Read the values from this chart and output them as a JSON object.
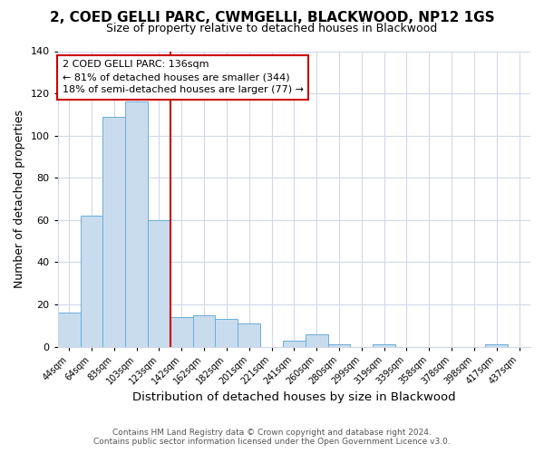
{
  "title": "2, COED GELLI PARC, CWMGELLI, BLACKWOOD, NP12 1GS",
  "subtitle": "Size of property relative to detached houses in Blackwood",
  "xlabel": "Distribution of detached houses by size in Blackwood",
  "ylabel": "Number of detached properties",
  "footer_line1": "Contains HM Land Registry data © Crown copyright and database right 2024.",
  "footer_line2": "Contains public sector information licensed under the Open Government Licence v3.0.",
  "bin_labels": [
    "44sqm",
    "64sqm",
    "83sqm",
    "103sqm",
    "123sqm",
    "142sqm",
    "162sqm",
    "182sqm",
    "201sqm",
    "221sqm",
    "241sqm",
    "260sqm",
    "280sqm",
    "299sqm",
    "319sqm",
    "339sqm",
    "358sqm",
    "378sqm",
    "398sqm",
    "417sqm",
    "437sqm"
  ],
  "bar_values": [
    16,
    62,
    109,
    116,
    60,
    14,
    15,
    13,
    11,
    0,
    3,
    6,
    1,
    0,
    1,
    0,
    0,
    0,
    0,
    1,
    0
  ],
  "bar_color": "#c8dcee",
  "bar_edge_color": "#6baed6",
  "vline_x_index": 4.5,
  "vline_color": "#cc0000",
  "annotation_title": "2 COED GELLI PARC: 136sqm",
  "annotation_line2": "← 81% of detached houses are smaller (344)",
  "annotation_line3": "18% of semi-detached houses are larger (77) →",
  "annotation_box_facecolor": "#ffffff",
  "annotation_box_edgecolor": "#cc0000",
  "ylim": [
    0,
    140
  ],
  "yticks": [
    0,
    20,
    40,
    60,
    80,
    100,
    120,
    140
  ],
  "fig_bg_color": "#ffffff",
  "plot_bg_color": "#ffffff",
  "grid_color": "#d0d8e8",
  "title_fontsize": 11,
  "subtitle_fontsize": 9,
  "ylabel_fontsize": 9,
  "xlabel_fontsize": 9.5,
  "tick_fontsize": 7,
  "footer_fontsize": 6.5,
  "annotation_fontsize": 8
}
